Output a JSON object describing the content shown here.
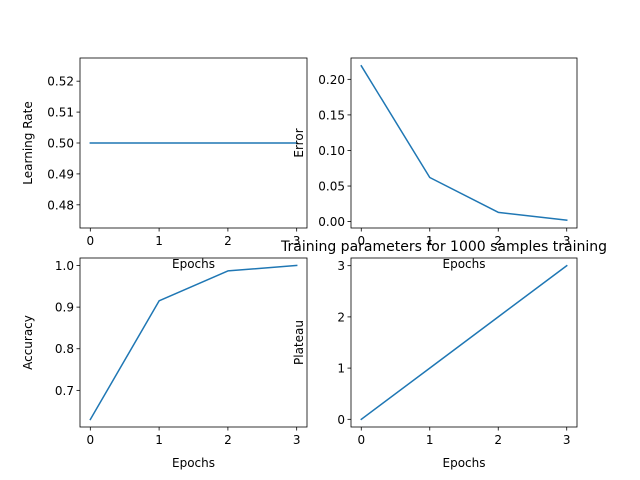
{
  "figure": {
    "title": "Training parameters for 1000 samples training"
  },
  "chart_data": [
    {
      "type": "line",
      "id": "learning-rate",
      "xlabel": "Epochs",
      "ylabel": "Learning Rate",
      "x": [
        0,
        1,
        2,
        3
      ],
      "series": [
        {
          "values": [
            0.5,
            0.5,
            0.5,
            0.5
          ],
          "color": "#1f77b4"
        }
      ],
      "xlim": [
        -0.15,
        3.15
      ],
      "ylim": [
        0.4725,
        0.5275
      ],
      "xticks": [
        0,
        1,
        2,
        3
      ],
      "yticks": [
        0.48,
        0.49,
        0.5,
        0.51,
        0.52
      ],
      "yprecision": 2,
      "grid": false
    },
    {
      "type": "line",
      "id": "error",
      "xlabel": "Epochs",
      "ylabel": "Error",
      "x": [
        0,
        1,
        2,
        3
      ],
      "series": [
        {
          "values": [
            0.219,
            0.062,
            0.013,
            0.002
          ],
          "color": "#1f77b4"
        }
      ],
      "xlim": [
        -0.15,
        3.15
      ],
      "ylim": [
        -0.009,
        0.23
      ],
      "xticks": [
        0,
        1,
        2,
        3
      ],
      "yticks": [
        0.0,
        0.05,
        0.1,
        0.15,
        0.2
      ],
      "yprecision": 2,
      "grid": false
    },
    {
      "type": "line",
      "id": "accuracy",
      "xlabel": "Epochs",
      "ylabel": "Accuracy",
      "x": [
        0,
        1,
        2,
        3
      ],
      "series": [
        {
          "values": [
            0.63,
            0.915,
            0.987,
            1.0
          ],
          "color": "#1f77b4"
        }
      ],
      "xlim": [
        -0.15,
        3.15
      ],
      "ylim": [
        0.612,
        1.018
      ],
      "xticks": [
        0,
        1,
        2,
        3
      ],
      "yticks": [
        0.7,
        0.8,
        0.9,
        1.0
      ],
      "yprecision": 1,
      "grid": false
    },
    {
      "type": "line",
      "id": "plateau",
      "xlabel": "Epochs",
      "ylabel": "Plateau",
      "x": [
        0,
        1,
        2,
        3
      ],
      "series": [
        {
          "values": [
            0,
            1,
            2,
            3
          ],
          "color": "#1f77b4"
        }
      ],
      "xlim": [
        -0.15,
        3.15
      ],
      "ylim": [
        -0.15,
        3.15
      ],
      "xticks": [
        0,
        1,
        2,
        3
      ],
      "yticks": [
        0,
        1,
        2,
        3
      ],
      "yprecision": 0,
      "grid": false
    }
  ]
}
